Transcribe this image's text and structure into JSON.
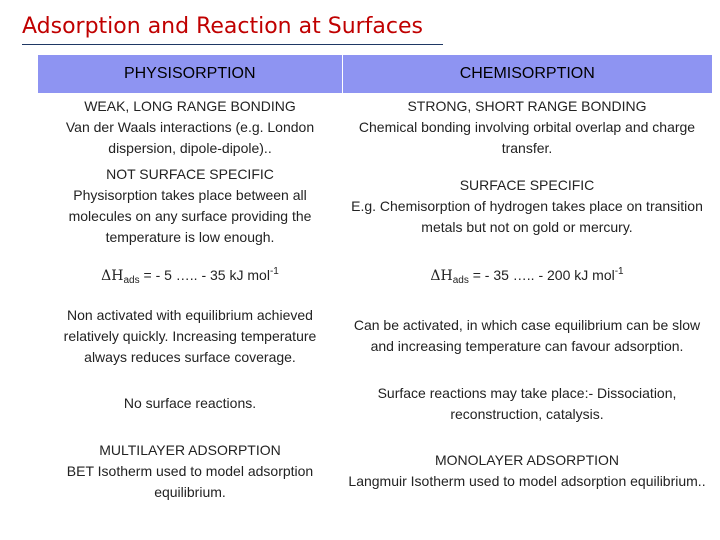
{
  "title": "Adsorption and Reaction at Surfaces",
  "headers": [
    "PHYSISORPTION",
    "CHEMISORPTION"
  ],
  "rows": [
    {
      "left": [
        "WEAK, LONG RANGE BONDING",
        "Van der Waals interactions (e.g. London dispersion, dipole-dipole).."
      ],
      "right": [
        "STRONG, SHORT RANGE BONDING",
        "Chemical bonding involving orbital overlap and charge transfer."
      ]
    },
    {
      "left": [
        "NOT SURFACE SPECIFIC",
        "Physisorption takes place between all molecules on any surface providing the temperature is low enough."
      ],
      "right": [
        "SURFACE SPECIFIC",
        "E.g. Chemisorption of hydrogen takes place on transition metals but not on gold or mercury."
      ]
    },
    {
      "left_enthalpy": {
        "symbol": "ΔH",
        "subscript": "ads",
        "range": " = - 5 ….. - 35 kJ mol",
        "superscript": "-1"
      },
      "right_enthalpy": {
        "symbol": "ΔH",
        "subscript": "ads",
        "range": " = - 35 ….. - 200 kJ mol",
        "superscript": "-1"
      }
    },
    {
      "left": [
        "Non activated with equilibrium achieved relatively quickly. Increasing temperature always reduces surface coverage."
      ],
      "right": [
        "Can be activated, in which case equilibrium can be slow and increasing temperature can favour adsorption."
      ]
    },
    {
      "left": [
        "No surface reactions."
      ],
      "right": [
        "Surface reactions may take place:- Dissociation, reconstruction, catalysis."
      ]
    },
    {
      "left": [
        "MULTILAYER ADSORPTION",
        "BET Isotherm used to model adsorption equilibrium."
      ],
      "right": [
        "MONOLAYER ADSORPTION",
        "Langmuir Isotherm used to model adsorption equilibrium.."
      ]
    }
  ]
}
